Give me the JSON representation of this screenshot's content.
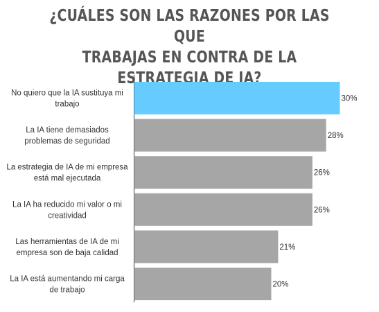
{
  "title_lines": [
    "¿CUÁLES SON LAS RAZONES POR LAS QUE",
    "TRABAJAS EN CONTRA DE LA ESTRATEGIA DE IA?"
  ],
  "colors": {
    "highlight": "#66ccff",
    "bar": "#a6a6a6",
    "axis": "#333333"
  },
  "chart_data": {
    "type": "bar",
    "orientation": "horizontal",
    "title": "¿CUÁLES SON LAS RAZONES POR LAS QUE TRABAJAS EN CONTRA DE LA ESTRATEGIA DE IA?",
    "categories": [
      [
        "No quiero que la IA sustituya mi",
        "trabajo"
      ],
      [
        "La IA tiene demasiados",
        "problemas de seguridad"
      ],
      [
        "La estrategia de IA de mi empresa",
        "está mal ejecutada"
      ],
      [
        "La IA ha reducido mi valor o mi",
        "creatividad"
      ],
      [
        "Las herramientas de IA de mi",
        "empresa son de baja calidad"
      ],
      [
        "La IA está aumentando mi carga",
        "de trabajo"
      ]
    ],
    "values": [
      30,
      28,
      26,
      26,
      21,
      20
    ],
    "value_labels": [
      "30%",
      "28%",
      "26%",
      "26%",
      "21%",
      "20%"
    ],
    "xlim": [
      0,
      30
    ],
    "grid": false,
    "highlight_index": 0
  }
}
